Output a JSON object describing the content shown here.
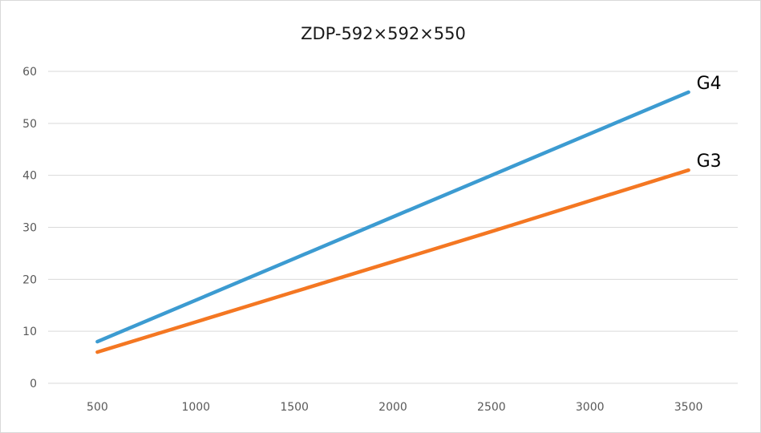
{
  "chart_data": {
    "type": "line",
    "title": "ZDP-592×592×550",
    "xlabel": "",
    "ylabel": "",
    "x": [
      500,
      1000,
      1500,
      2000,
      2500,
      3000,
      3500
    ],
    "xlim": [
      250,
      3750
    ],
    "ylim": [
      0,
      60
    ],
    "yticks": [
      0,
      10,
      20,
      30,
      40,
      50,
      60
    ],
    "grid": true,
    "legend": "none",
    "series": [
      {
        "name": "G4",
        "color": "#3c9bd1",
        "values": [
          8,
          16,
          24,
          32,
          40,
          48,
          56
        ]
      },
      {
        "name": "G3",
        "color": "#f47722",
        "values": [
          6,
          11.8,
          17.6,
          23.4,
          29.2,
          35.1,
          41
        ]
      }
    ]
  }
}
